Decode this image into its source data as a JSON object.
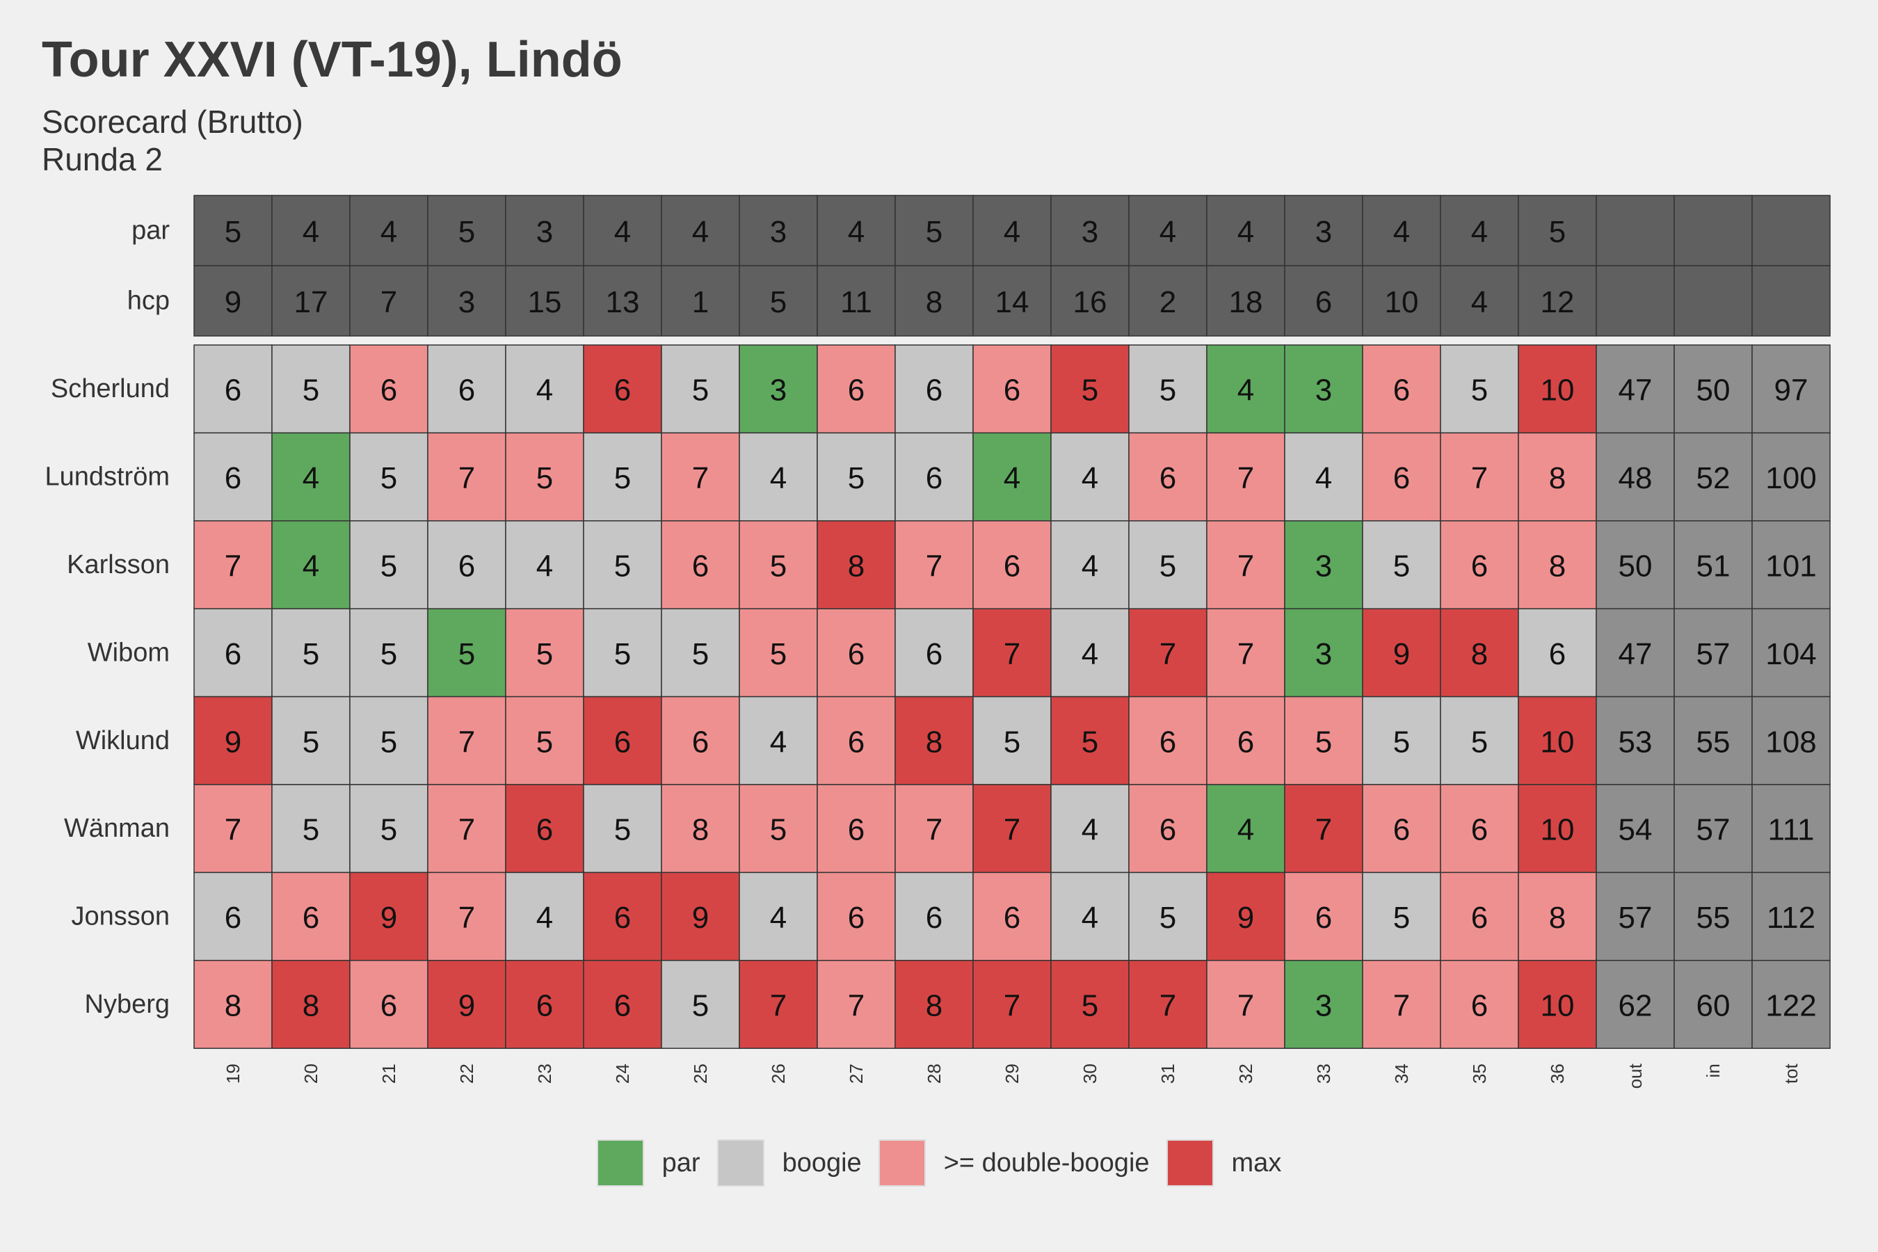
{
  "chart_data": {
    "type": "heatmap",
    "title": "Tour XXVI (VT-19), Lindö",
    "subtitle_lines": [
      "Scorecard (Brutto)",
      "Runda 2"
    ],
    "columns": [
      "19",
      "20",
      "21",
      "22",
      "23",
      "24",
      "25",
      "26",
      "27",
      "28",
      "29",
      "30",
      "31",
      "32",
      "33",
      "34",
      "35",
      "36",
      "out",
      "in",
      "tot"
    ],
    "info_rows": [
      {
        "label": "par",
        "values": [
          5,
          4,
          4,
          5,
          3,
          4,
          4,
          3,
          4,
          5,
          4,
          3,
          4,
          4,
          3,
          4,
          4,
          5
        ]
      },
      {
        "label": "hcp",
        "values": [
          9,
          17,
          7,
          3,
          15,
          13,
          1,
          5,
          11,
          8,
          14,
          16,
          2,
          18,
          6,
          10,
          4,
          12
        ]
      }
    ],
    "players": [
      {
        "name": "Scherlund",
        "scores": [
          6,
          5,
          6,
          6,
          4,
          6,
          5,
          3,
          6,
          6,
          6,
          5,
          5,
          4,
          3,
          6,
          5,
          10
        ],
        "out": 47,
        "in": 50,
        "tot": 97
      },
      {
        "name": "Lundström",
        "scores": [
          6,
          4,
          5,
          7,
          5,
          5,
          7,
          4,
          5,
          6,
          4,
          4,
          6,
          7,
          4,
          6,
          7,
          8
        ],
        "out": 48,
        "in": 52,
        "tot": 100
      },
      {
        "name": "Karlsson",
        "scores": [
          7,
          4,
          5,
          6,
          4,
          5,
          6,
          5,
          8,
          7,
          6,
          4,
          5,
          7,
          3,
          5,
          6,
          8
        ],
        "out": 50,
        "in": 51,
        "tot": 101
      },
      {
        "name": "Wibom",
        "scores": [
          6,
          5,
          5,
          5,
          5,
          5,
          5,
          5,
          6,
          6,
          7,
          4,
          7,
          7,
          3,
          9,
          8,
          6
        ],
        "out": 47,
        "in": 57,
        "tot": 104
      },
      {
        "name": "Wiklund",
        "scores": [
          9,
          5,
          5,
          7,
          5,
          6,
          6,
          4,
          6,
          8,
          5,
          5,
          6,
          6,
          5,
          5,
          5,
          10
        ],
        "out": 53,
        "in": 55,
        "tot": 108
      },
      {
        "name": "Wänman",
        "scores": [
          7,
          5,
          5,
          7,
          6,
          5,
          8,
          5,
          6,
          7,
          7,
          4,
          6,
          4,
          7,
          6,
          6,
          10
        ],
        "out": 54,
        "in": 57,
        "tot": 111
      },
      {
        "name": "Jonsson",
        "scores": [
          6,
          6,
          9,
          7,
          4,
          6,
          9,
          4,
          6,
          6,
          6,
          4,
          5,
          9,
          6,
          5,
          6,
          8
        ],
        "out": 57,
        "in": 55,
        "tot": 112
      },
      {
        "name": "Nyberg",
        "scores": [
          8,
          8,
          6,
          9,
          6,
          6,
          5,
          7,
          7,
          8,
          7,
          5,
          7,
          7,
          3,
          7,
          6,
          10
        ],
        "out": 62,
        "in": 60,
        "tot": 122
      }
    ],
    "legend": [
      {
        "key": "par",
        "label": "par",
        "color": "#5ea95e"
      },
      {
        "key": "boogie",
        "label": "boogie",
        "color": "#c6c6c6"
      },
      {
        "key": "double",
        "label": ">= double-boogie",
        "color": "#ef9090"
      },
      {
        "key": "max",
        "label": "max",
        "color": "#d64545"
      }
    ],
    "colors": {
      "header_fill": "#606060",
      "total_fill": "#8f8f8f",
      "grid_line": "#333333"
    },
    "legend_position": "bottom",
    "grid": false
  }
}
